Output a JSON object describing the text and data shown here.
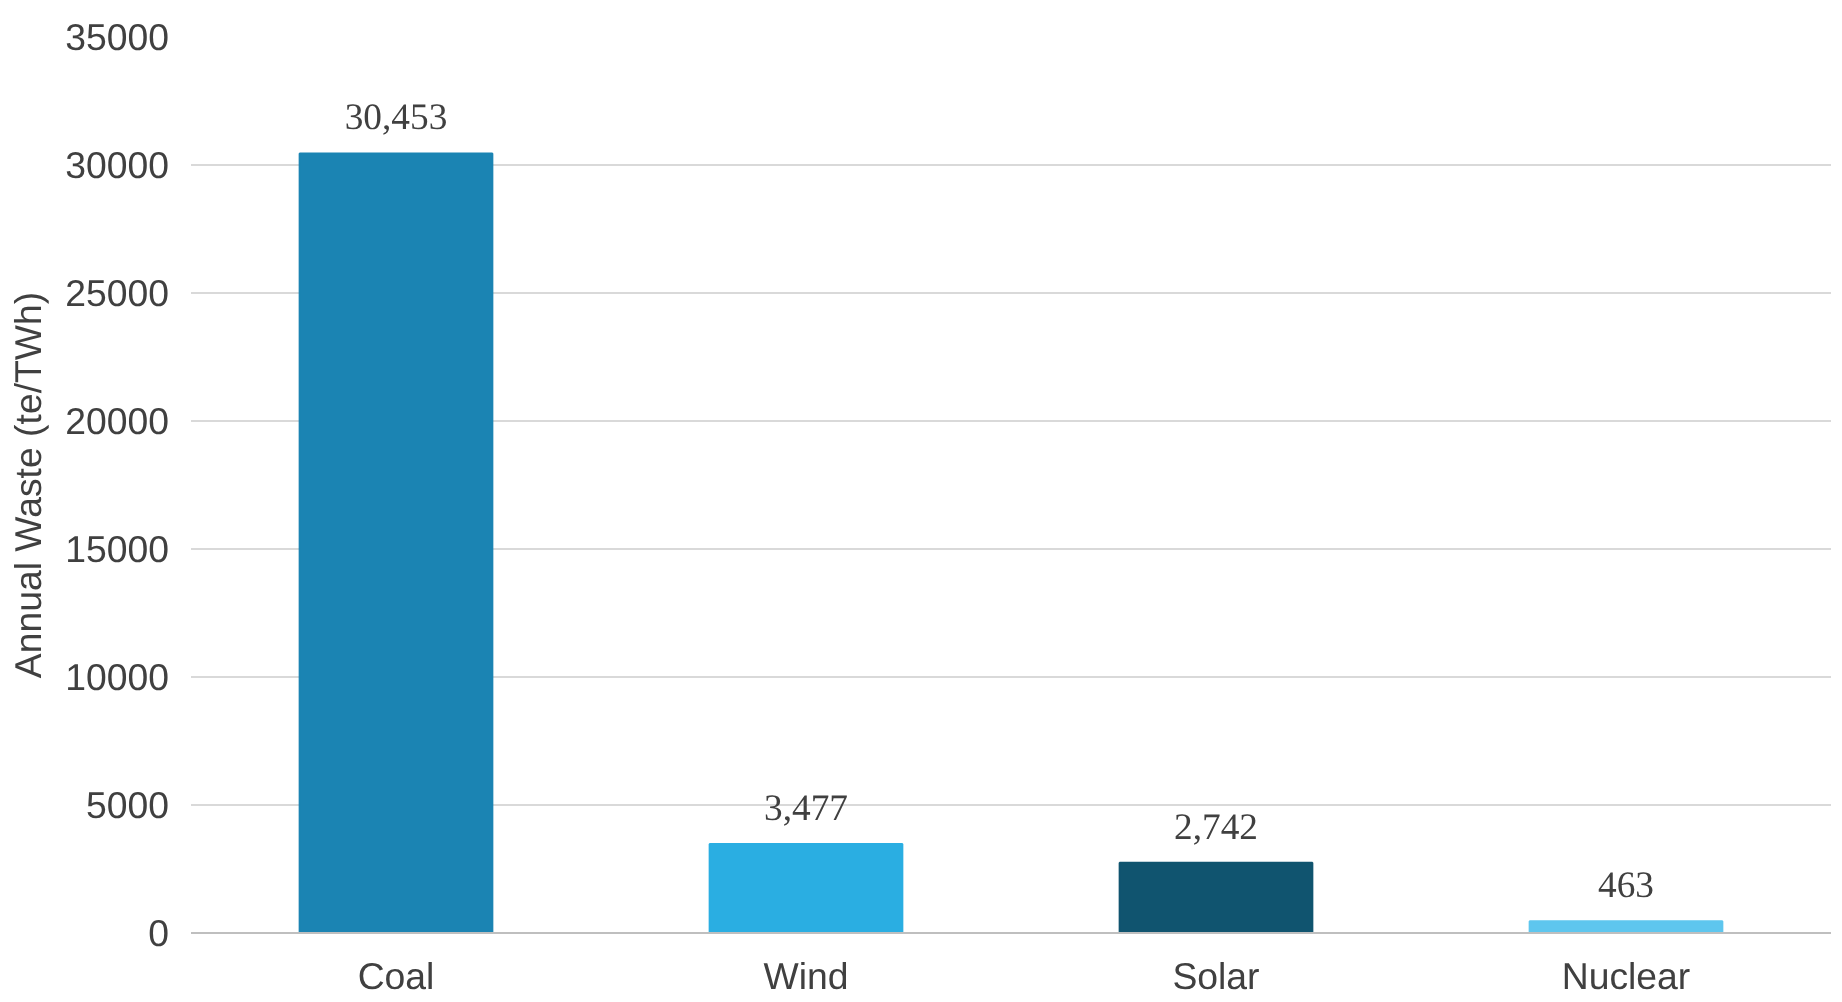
{
  "chart_data": {
    "type": "bar",
    "ylabel": "Annual Waste (te/TWh)",
    "categories": [
      "Coal",
      "Wind",
      "Solar",
      "Nuclear"
    ],
    "values": [
      30453,
      3477,
      2742,
      463
    ],
    "value_labels": [
      "30,453",
      "3,477",
      "2,742",
      "463"
    ],
    "colors": [
      "#1b84b3",
      "#2aaee2",
      "#10546f",
      "#5ec6ee"
    ],
    "ylim": [
      0,
      35000
    ],
    "yticks": [
      0,
      5000,
      10000,
      15000,
      20000,
      25000,
      30000,
      35000
    ],
    "grid": "y"
  }
}
